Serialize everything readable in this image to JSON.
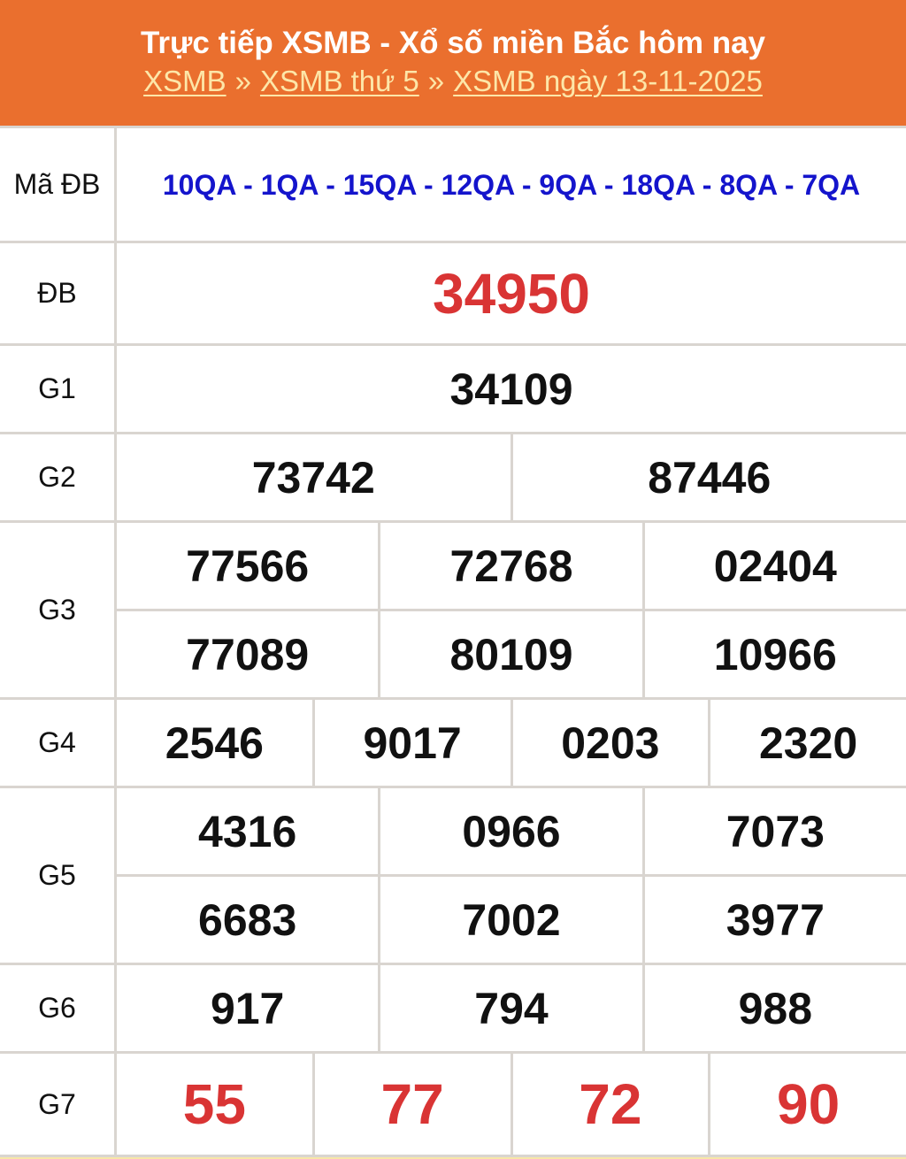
{
  "header": {
    "title": "Trực tiếp XSMB - Xổ số miền Bắc hôm nay",
    "breadcrumb": [
      {
        "label": "XSMB"
      },
      {
        "label": "XSMB thứ 5"
      },
      {
        "label": "XSMB ngày 13-11-2025"
      }
    ],
    "separator": "»"
  },
  "colors": {
    "header_bg": "#ea6f2e",
    "link": "#fde6a8",
    "code": "#1414cc",
    "special": "#d93434"
  },
  "results": {
    "ma_db": {
      "label": "Mã ĐB",
      "value": "10QA - 1QA - 15QA - 12QA - 9QA - 18QA - 8QA - 7QA"
    },
    "db": {
      "label": "ĐB",
      "values": [
        "34950"
      ]
    },
    "g1": {
      "label": "G1",
      "values": [
        "34109"
      ]
    },
    "g2": {
      "label": "G2",
      "values": [
        "73742",
        "87446"
      ]
    },
    "g3": {
      "label": "G3",
      "values": [
        "77566",
        "72768",
        "02404",
        "77089",
        "80109",
        "10966"
      ]
    },
    "g4": {
      "label": "G4",
      "values": [
        "2546",
        "9017",
        "0203",
        "2320"
      ]
    },
    "g5": {
      "label": "G5",
      "values": [
        "4316",
        "0966",
        "7073",
        "6683",
        "7002",
        "3977"
      ]
    },
    "g6": {
      "label": "G6",
      "values": [
        "917",
        "794",
        "988"
      ]
    },
    "g7": {
      "label": "G7",
      "values": [
        "55",
        "77",
        "72",
        "90"
      ]
    }
  }
}
